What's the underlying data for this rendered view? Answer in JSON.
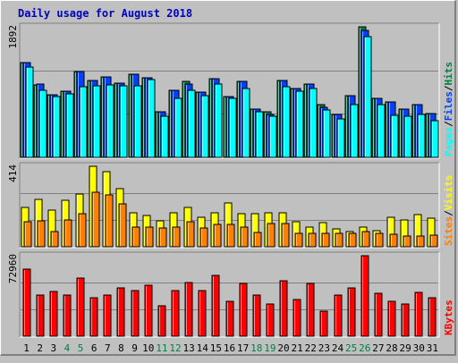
{
  "chart_data": {
    "type": "bar",
    "title": "Daily usage for August 2018",
    "categories": [
      "1",
      "2",
      "3",
      "4",
      "5",
      "6",
      "7",
      "8",
      "9",
      "10",
      "11",
      "12",
      "13",
      "14",
      "15",
      "16",
      "17",
      "18",
      "19",
      "20",
      "21",
      "22",
      "23",
      "24",
      "25",
      "26",
      "27",
      "28",
      "29",
      "30",
      "31"
    ],
    "weekend_days": [
      "4",
      "5",
      "11",
      "12",
      "18",
      "19",
      "25",
      "26"
    ],
    "panels": [
      {
        "id": "hits",
        "max_label": "1892",
        "ymax": 1892,
        "right_label": [
          "Pages",
          "Files",
          "Hits"
        ],
        "series": [
          {
            "name": "Hits",
            "color": "#008040",
            "values": [
              1380,
              1050,
              910,
              960,
              1250,
              1110,
              1160,
              1080,
              1210,
              1150,
              660,
              970,
              1100,
              950,
              1140,
              880,
              1100,
              695,
              655,
              1120,
              1000,
              1060,
              770,
              620,
              900,
              1890,
              860,
              800,
              700,
              770,
              640
            ]
          },
          {
            "name": "Files",
            "color": "#0040ff",
            "values": [
              1380,
              1060,
              910,
              960,
              1250,
              1110,
              1160,
              1080,
              1210,
              1150,
              660,
              970,
              1060,
              950,
              1140,
              880,
              1100,
              695,
              620,
              1120,
              1000,
              1060,
              720,
              620,
              900,
              1840,
              860,
              800,
              700,
              770,
              640
            ]
          },
          {
            "name": "Pages",
            "color": "#00ffff",
            "values": [
              1310,
              970,
              880,
              920,
              1030,
              1040,
              1050,
              1040,
              1040,
              1130,
              600,
              860,
              970,
              900,
              1060,
              850,
              1000,
              655,
              590,
              1020,
              960,
              1000,
              690,
              560,
              770,
              1750,
              760,
              610,
              600,
              620,
              530
            ]
          }
        ]
      },
      {
        "id": "visits",
        "max_label": "414",
        "ymax": 414,
        "right_label": [
          "Sites",
          "/",
          "Visits"
        ],
        "series": [
          {
            "name": "Visits",
            "color": "#ffff00",
            "values": [
              203,
              242,
              190,
              237,
              270,
              415,
              388,
              301,
              176,
              160,
              134,
              175,
              202,
              153,
              176,
              225,
              172,
              170,
              175,
              175,
              130,
              100,
              125,
              90,
              80,
              100,
              85,
              150,
              140,
              165,
              145
            ]
          },
          {
            "name": "Sites",
            "color": "#ff8000",
            "values": [
              127,
              133,
              80,
              140,
              170,
              280,
              265,
              220,
              100,
              100,
              95,
              100,
              130,
              95,
              115,
              115,
              100,
              75,
              120,
              120,
              70,
              70,
              70,
              70,
              70,
              80,
              70,
              65,
              55,
              55,
              60
            ]
          }
        ]
      },
      {
        "id": "kbytes",
        "max_label": "72960",
        "ymax": 72960,
        "right_label": [
          "KBytes"
        ],
        "series": [
          {
            "name": "KBytes",
            "color": "#ff0000",
            "values": [
              61000,
              37000,
              40500,
              37500,
              52500,
              34500,
              37000,
              43500,
              41500,
              46500,
              27500,
              41500,
              49000,
              41500,
              55000,
              31500,
              48000,
              37500,
              29500,
              50500,
              33000,
              47500,
              22500,
              37000,
              44000,
              72800,
              39000,
              31500,
              29000,
              40000,
              34500
            ]
          }
        ]
      }
    ]
  }
}
